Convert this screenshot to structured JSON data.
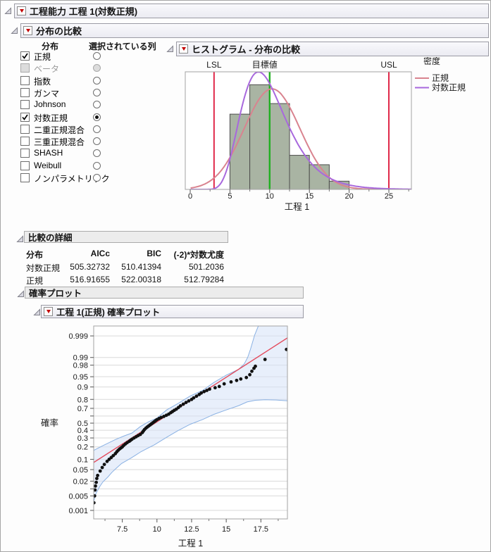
{
  "window": {
    "title": "工程能力 工程 1(対数正規)"
  },
  "sections": {
    "comparison_title": "分布の比較",
    "histogram_title": "ヒストグラム - 分布の比較",
    "details_title": "比較の詳細",
    "prob_plots_title": "確率プロット",
    "prob_plot_title": "工程 1(正規) 確率プロット"
  },
  "distribution_panel": {
    "col1_header": "分布",
    "col2_header": "選択されている列",
    "items": [
      {
        "label": "正規",
        "checked": true,
        "selected": false,
        "disabled": false
      },
      {
        "label": "ベータ",
        "checked": false,
        "selected": false,
        "disabled": true
      },
      {
        "label": "指数",
        "checked": false,
        "selected": false,
        "disabled": false
      },
      {
        "label": "ガンマ",
        "checked": false,
        "selected": false,
        "disabled": false
      },
      {
        "label": "Johnson",
        "checked": false,
        "selected": false,
        "disabled": false
      },
      {
        "label": "対数正規",
        "checked": true,
        "selected": true,
        "disabled": false
      },
      {
        "label": "二重正規混合",
        "checked": false,
        "selected": false,
        "disabled": false
      },
      {
        "label": "三重正規混合",
        "checked": false,
        "selected": false,
        "disabled": false
      },
      {
        "label": "SHASH",
        "checked": false,
        "selected": false,
        "disabled": false
      },
      {
        "label": "Weibull",
        "checked": false,
        "selected": false,
        "disabled": false
      },
      {
        "label": "ノンパラメトリック",
        "checked": false,
        "selected": false,
        "disabled": false
      }
    ]
  },
  "details_table": {
    "columns": [
      "分布",
      "AICc",
      "BIC",
      "(-2)*対数尤度"
    ],
    "rows": [
      [
        "対数正規",
        "505.32732",
        "510.41394",
        "501.2036"
      ],
      [
        "正規",
        "516.91655",
        "522.00318",
        "512.79284"
      ]
    ]
  },
  "chart_data": [
    {
      "type": "histogram",
      "title": "ヒストグラム - 分布の比較",
      "xlabel": "工程 1",
      "xlim": [
        -0.65,
        27.8
      ],
      "x_ticks": [
        0,
        5,
        10,
        15,
        20,
        25
      ],
      "x_minor_ticks": [
        2.5,
        7.5,
        12.5,
        17.5,
        22.5,
        27.5
      ],
      "bins": {
        "start": 5,
        "width": 2.5,
        "rel_heights": [
          0.64,
          0.89,
          0.73,
          0.29,
          0.21,
          0.07
        ]
      },
      "bar_fill": "#a9b4a3",
      "bar_stroke": "#4d4d4d",
      "ref_lines": [
        {
          "label": "LSL",
          "x": 3,
          "color": "#e0294a"
        },
        {
          "label": "目標値",
          "x": 10,
          "color": "#21b021"
        },
        {
          "label": "USL",
          "x": 25,
          "color": "#e0294a"
        }
      ],
      "legend_title": "密度",
      "curves": [
        {
          "name": "正規",
          "type": "normal",
          "mean": 10.3,
          "sd": 3.5,
          "color": "#d9838f"
        },
        {
          "name": "対数正規",
          "type": "lognormal",
          "logmean": 2.26,
          "logsd": 0.33,
          "color": "#a868dd"
        }
      ],
      "density_scale": 7.5
    },
    {
      "type": "probability-plot",
      "xlabel": "工程 1",
      "ylabel": "確率",
      "xlim": [
        5.42,
        19.42
      ],
      "x_ticks": [
        7.5,
        10,
        12.5,
        15,
        17.5
      ],
      "x_minor_ticks": [
        6.25,
        8.75,
        11.25,
        13.75,
        16.25,
        18.75
      ],
      "y_ticks": [
        {
          "p": 0.999,
          "label": "0.999"
        },
        {
          "p": 0.99,
          "label": "0.99"
        },
        {
          "p": 0.98,
          "label": "0.98"
        },
        {
          "p": 0.95,
          "label": "0.95"
        },
        {
          "p": 0.9,
          "label": "0.9"
        },
        {
          "p": 0.8,
          "label": "0.8"
        },
        {
          "p": 0.7,
          "label": "0.7"
        },
        {
          "p": 0.6,
          "label": ""
        },
        {
          "p": 0.5,
          "label": "0.5"
        },
        {
          "p": 0.4,
          "label": "0.4"
        },
        {
          "p": 0.3,
          "label": "0.3"
        },
        {
          "p": 0.2,
          "label": "0.2"
        },
        {
          "p": 0.1,
          "label": "0.1"
        },
        {
          "p": 0.05,
          "label": "0.05"
        },
        {
          "p": 0.02,
          "label": "0.02"
        },
        {
          "p": 0.01,
          "label": ""
        },
        {
          "p": 0.005,
          "label": "0.005"
        },
        {
          "p": 0.001,
          "label": "0.001"
        }
      ],
      "zlim": [
        -3.39,
        3.44
      ],
      "fit_line": {
        "x_at_p50": 9.85,
        "slope_z_per_x": 0.3156,
        "color": "#e34a5c"
      },
      "band": {
        "fill": "rgba(213,226,248,0.55)",
        "stroke": "#8ab1e3",
        "upper_z": [
          [
            5.42,
            -0.97
          ],
          [
            6.0,
            -0.82
          ],
          [
            6.5,
            -0.7
          ],
          [
            7.0,
            -0.58
          ],
          [
            7.6,
            -0.46
          ],
          [
            8.2,
            -0.35
          ],
          [
            8.8,
            -0.12
          ],
          [
            9.4,
            0.05
          ],
          [
            10.0,
            0.18
          ],
          [
            10.7,
            0.47
          ],
          [
            11.5,
            0.69
          ],
          [
            12.4,
            0.96
          ],
          [
            13.3,
            1.16
          ],
          [
            14.1,
            1.44
          ],
          [
            15.0,
            1.7
          ],
          [
            15.9,
            1.91
          ],
          [
            16.3,
            2.1
          ],
          [
            16.55,
            2.33
          ],
          [
            16.75,
            2.62
          ],
          [
            17.05,
            3.12
          ],
          [
            17.45,
            3.6
          ],
          [
            19.42,
            3.6
          ]
        ],
        "lower_z": [
          [
            5.35,
            -3.5
          ],
          [
            5.45,
            -2.75
          ],
          [
            5.6,
            -2.49
          ],
          [
            5.85,
            -2.26
          ],
          [
            6.1,
            -2.08
          ],
          [
            6.45,
            -1.91
          ],
          [
            6.75,
            -1.74
          ],
          [
            7.1,
            -1.58
          ],
          [
            7.45,
            -1.43
          ],
          [
            7.8,
            -1.33
          ],
          [
            8.15,
            -1.23
          ],
          [
            8.5,
            -1.12
          ],
          [
            8.85,
            -1.01
          ],
          [
            9.2,
            -0.92
          ],
          [
            9.8,
            -0.77
          ],
          [
            10.7,
            -0.5
          ],
          [
            11.5,
            -0.27
          ],
          [
            12.4,
            -0.04
          ],
          [
            13.3,
            0.13
          ],
          [
            14.1,
            0.31
          ],
          [
            15.0,
            0.47
          ],
          [
            15.9,
            0.62
          ],
          [
            16.5,
            0.75
          ],
          [
            17.1,
            0.81
          ],
          [
            17.8,
            0.83
          ],
          [
            18.6,
            0.82
          ],
          [
            19.42,
            0.79
          ]
        ]
      },
      "point_color": "#111111",
      "points": [
        [
          5.45,
          0.0024
        ],
        [
          5.5,
          0.005
        ],
        [
          5.53,
          0.009
        ],
        [
          5.56,
          0.013
        ],
        [
          5.62,
          0.018
        ],
        [
          5.66,
          0.025
        ],
        [
          5.72,
          0.032
        ],
        [
          5.9,
          0.045
        ],
        [
          6.05,
          0.058
        ],
        [
          6.2,
          0.072
        ],
        [
          6.4,
          0.088
        ],
        [
          6.55,
          0.1
        ],
        [
          6.7,
          0.112
        ],
        [
          6.85,
          0.125
        ],
        [
          7.0,
          0.14
        ],
        [
          7.1,
          0.155
        ],
        [
          7.2,
          0.168
        ],
        [
          7.3,
          0.18
        ],
        [
          7.4,
          0.19
        ],
        [
          7.5,
          0.2
        ],
        [
          7.6,
          0.215
        ],
        [
          7.72,
          0.23
        ],
        [
          7.85,
          0.245
        ],
        [
          8.0,
          0.26
        ],
        [
          8.1,
          0.272
        ],
        [
          8.2,
          0.285
        ],
        [
          8.35,
          0.3
        ],
        [
          8.5,
          0.315
        ],
        [
          8.65,
          0.33
        ],
        [
          8.8,
          0.345
        ],
        [
          8.95,
          0.37
        ],
        [
          9.02,
          0.39
        ],
        [
          9.1,
          0.41
        ],
        [
          9.2,
          0.43
        ],
        [
          9.3,
          0.445
        ],
        [
          9.4,
          0.46
        ],
        [
          9.5,
          0.475
        ],
        [
          9.6,
          0.49
        ],
        [
          9.7,
          0.505
        ],
        [
          9.8,
          0.52
        ],
        [
          9.9,
          0.535
        ],
        [
          10.0,
          0.55
        ],
        [
          10.15,
          0.565
        ],
        [
          10.3,
          0.58
        ],
        [
          10.5,
          0.595
        ],
        [
          10.68,
          0.61
        ],
        [
          10.85,
          0.625
        ],
        [
          11.0,
          0.645
        ],
        [
          11.12,
          0.66
        ],
        [
          11.25,
          0.675
        ],
        [
          11.4,
          0.69
        ],
        [
          11.55,
          0.71
        ],
        [
          11.7,
          0.73
        ],
        [
          11.9,
          0.75
        ],
        [
          12.1,
          0.768
        ],
        [
          12.3,
          0.785
        ],
        [
          12.5,
          0.8
        ],
        [
          12.65,
          0.815
        ],
        [
          12.85,
          0.83
        ],
        [
          13.05,
          0.845
        ],
        [
          13.2,
          0.857
        ],
        [
          13.4,
          0.868
        ],
        [
          13.6,
          0.877
        ],
        [
          13.8,
          0.886
        ],
        [
          14.2,
          0.895
        ],
        [
          14.5,
          0.903
        ],
        [
          14.85,
          0.918
        ],
        [
          15.35,
          0.928
        ],
        [
          15.75,
          0.935
        ],
        [
          16.05,
          0.941
        ],
        [
          16.45,
          0.947
        ],
        [
          16.7,
          0.957
        ],
        [
          16.85,
          0.967
        ],
        [
          17.0,
          0.974
        ],
        [
          17.1,
          0.978
        ],
        [
          17.8,
          0.988
        ],
        [
          19.35,
          0.9955
        ]
      ]
    }
  ]
}
